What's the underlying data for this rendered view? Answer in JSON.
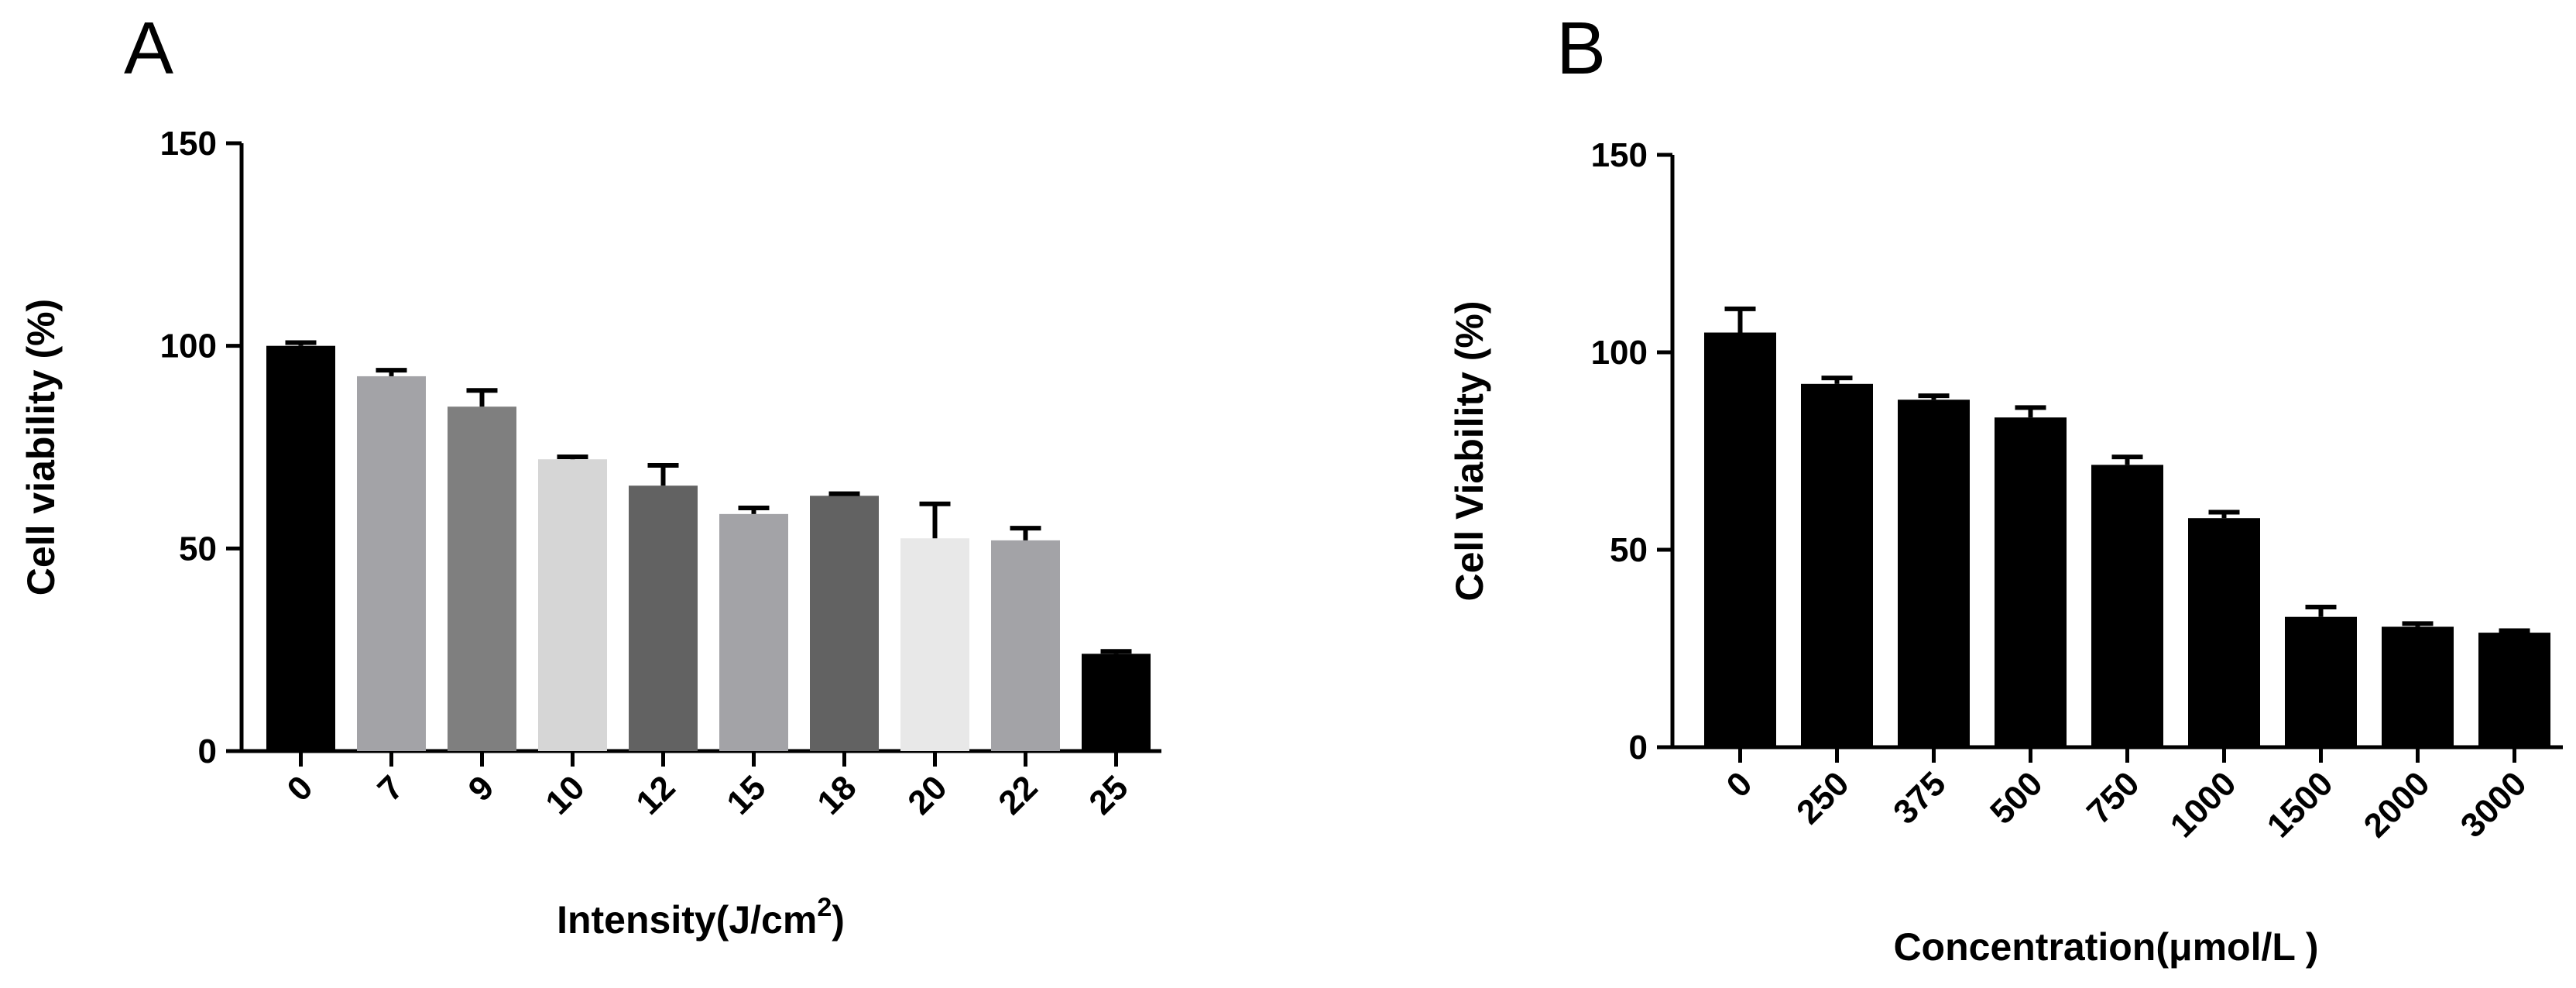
{
  "chart_data": [
    {
      "panel": "A",
      "type": "bar",
      "ylabel": "Cell  viability (%)",
      "xlabel_main": "Intensity(J/cm",
      "xlabel_sup": "2",
      "xlabel_end": ")",
      "ylim": [
        0,
        150
      ],
      "yticks": [
        "0",
        "50",
        "100",
        "150"
      ],
      "categories": [
        "0",
        "7",
        "9",
        "10",
        "12",
        "15",
        "18",
        "20",
        "22",
        "25"
      ],
      "values": [
        100,
        92.5,
        85,
        72,
        65.5,
        58.5,
        63,
        52.5,
        52,
        24
      ],
      "errors": [
        0.8,
        1.5,
        4,
        0.6,
        5,
        1.5,
        0.5,
        8.5,
        3,
        0.6
      ],
      "colors": [
        "#000000",
        "#a3a3a7",
        "#7f7f7f",
        "#d6d6d6",
        "#626262",
        "#a3a3a7",
        "#626262",
        "#e8e8e8",
        "#a3a3a7",
        "#000000"
      ],
      "grid": false
    },
    {
      "panel": "B",
      "type": "bar",
      "ylabel": "Cell Viability (%)",
      "xlabel_main": "Concentration(μmol/L  )",
      "ylim": [
        0,
        150
      ],
      "yticks": [
        "0",
        "50",
        "100",
        "150"
      ],
      "categories": [
        "0",
        "250",
        "375",
        "500",
        "750",
        "1000",
        "1500",
        "2000",
        "3000"
      ],
      "values": [
        105,
        92,
        88,
        83.5,
        71.5,
        58,
        33,
        30.5,
        29
      ],
      "errors": [
        6,
        1.5,
        1,
        2.5,
        2,
        1.5,
        2.5,
        0.8,
        0.5
      ],
      "colors": [
        "#000000",
        "#000000",
        "#000000",
        "#000000",
        "#000000",
        "#000000",
        "#000000",
        "#000000",
        "#000000"
      ],
      "grid": false
    }
  ]
}
